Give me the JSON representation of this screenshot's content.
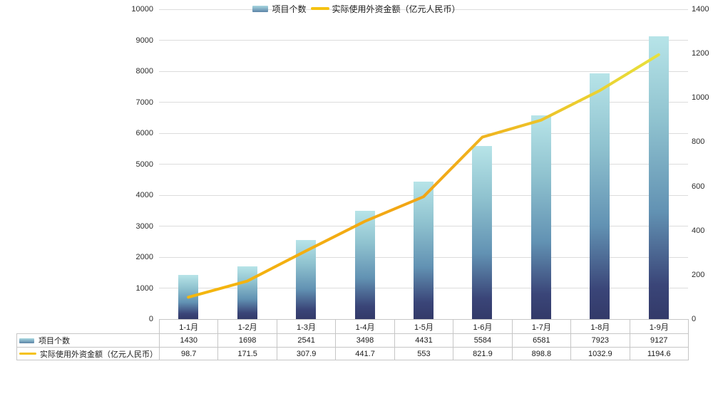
{
  "chart_data": {
    "type": "bar+line combo",
    "categories": [
      "1-1月",
      "1-2月",
      "1-3月",
      "1-4月",
      "1-5月",
      "1-6月",
      "1-7月",
      "1-8月",
      "1-9月"
    ],
    "series": [
      {
        "name": "项目个数",
        "type": "bar",
        "axis": "left",
        "values": [
          1430,
          1698,
          2541,
          3498,
          4431,
          5584,
          6581,
          7923,
          9127
        ]
      },
      {
        "name": "实际使用外资金额（亿元人民币）",
        "type": "line",
        "axis": "right",
        "values": [
          98.7,
          171.5,
          307.9,
          441.7,
          553,
          821.9,
          898.8,
          1032.9,
          1194.6
        ]
      }
    ],
    "left_axis": {
      "min": 0,
      "max": 10000,
      "step": 1000,
      "tick_labels": [
        "0",
        "1000",
        "2000",
        "3000",
        "4000",
        "5000",
        "6000",
        "7000",
        "8000",
        "9000",
        "10000"
      ]
    },
    "right_axis": {
      "min": 0,
      "max": 1400,
      "step": 200,
      "tick_labels": [
        "0",
        "200",
        "400",
        "600",
        "800",
        "1000",
        "1200",
        "1400"
      ]
    },
    "grid": true,
    "legend_position": "bottom",
    "data_table": true,
    "colors": {
      "bar_gradient_top": "#b7e4e8",
      "bar_gradient_bottom": "#333a69",
      "line_start": "#f4b70e",
      "line_mid": "#f2a515",
      "line_end": "#e8e13c",
      "grid_line": "#dcdcdc",
      "axis_base_line": "#a6a6a6",
      "table_border": "#c6c6c6"
    }
  }
}
